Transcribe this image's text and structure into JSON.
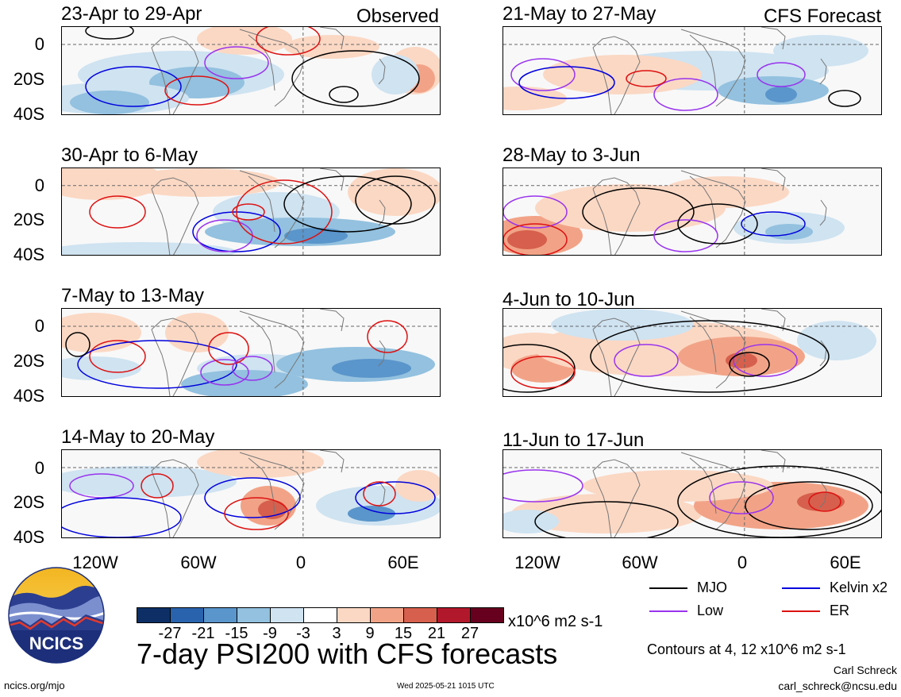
{
  "observed_label": "Observed",
  "forecast_label": "CFS Forecast",
  "lat_ticks": [
    "0",
    "20S",
    "40S"
  ],
  "lon_ticks": [
    "120W",
    "60W",
    "0",
    "60E"
  ],
  "panels": [
    {
      "title": "23-Apr to 29-Apr"
    },
    {
      "title": "30-Apr to 6-May"
    },
    {
      "title": "7-May to 13-May"
    },
    {
      "title": "14-May to 20-May"
    },
    {
      "title": "21-May to 27-May"
    },
    {
      "title": "28-May to 3-Jun"
    },
    {
      "title": "4-Jun to 10-Jun"
    },
    {
      "title": "11-Jun to 17-Jun"
    }
  ],
  "legend": {
    "mjo": "MJO",
    "kelvin": "Kelvin x2",
    "low": "Low",
    "er": "ER",
    "colors": {
      "mjo": "#000000",
      "kelvin": "#0000dd",
      "low": "#9933ee",
      "er": "#dd1111"
    }
  },
  "colorbar": {
    "ticks": [
      "-27",
      "-21",
      "-15",
      "-9",
      "-3",
      "3",
      "9",
      "15",
      "21",
      "27"
    ],
    "colors": [
      "#0d2f66",
      "#2a63ad",
      "#5a95cb",
      "#93c1df",
      "#cfe3f1",
      "#ffffff",
      "#fbd8c4",
      "#f2a387",
      "#d6604d",
      "#b2182b",
      "#67001f"
    ],
    "units": "x10^6 m2 s-1"
  },
  "main_title": "7-day PSI200 with CFS forecasts",
  "contours_note": "Contours at 4, 12 x10^6 m2 s-1",
  "author": "Carl Schreck",
  "email": "carl_schreck@ncsu.edu",
  "site": "ncics.org/mjo",
  "timestamp": "Wed 2025-05-21 1015 UTC",
  "logo_text": "NCICS"
}
